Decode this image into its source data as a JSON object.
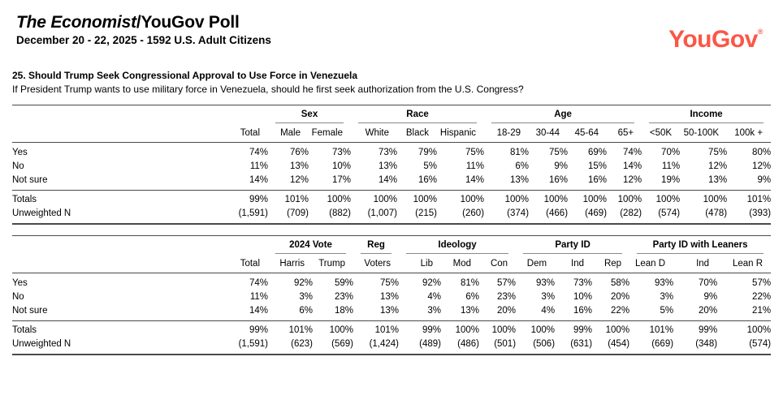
{
  "header": {
    "title_italic": "The Economist",
    "title_rest": "/YouGov Poll",
    "subtitle": "December 20 - 22, 2025 - 1592 U.S. Adult Citizens",
    "logo_text": "YouGov",
    "logo_reg": "®",
    "logo_color": "#fa5747"
  },
  "question": {
    "title": "25. Should Trump Seek Congressional Approval to Use Force in Venezuela",
    "text": "If President Trump wants to use military force in Venezuela, should he first seek authorization from the U.S. Congress?"
  },
  "tables": [
    {
      "groups": [
        {
          "label": "",
          "span": 1
        },
        {
          "label": "Sex",
          "span": 2
        },
        {
          "label": "Race",
          "span": 3
        },
        {
          "label": "Age",
          "span": 4
        },
        {
          "label": "Income",
          "span": 3
        }
      ],
      "columns": [
        "Total",
        "Male",
        "Female",
        "White",
        "Black",
        "Hispanic",
        "18-29",
        "30-44",
        "45-64",
        "65+",
        "<50K",
        "50-100K",
        "100k +"
      ],
      "rows": [
        {
          "label": "Yes",
          "values": [
            "74%",
            "76%",
            "73%",
            "73%",
            "79%",
            "75%",
            "81%",
            "75%",
            "69%",
            "74%",
            "70%",
            "75%",
            "80%"
          ]
        },
        {
          "label": "No",
          "values": [
            "11%",
            "13%",
            "10%",
            "13%",
            "5%",
            "11%",
            "6%",
            "9%",
            "15%",
            "14%",
            "11%",
            "12%",
            "12%"
          ]
        },
        {
          "label": "Not sure",
          "values": [
            "14%",
            "12%",
            "17%",
            "14%",
            "16%",
            "14%",
            "13%",
            "16%",
            "16%",
            "12%",
            "19%",
            "13%",
            "9%"
          ]
        }
      ],
      "footer_rows": [
        {
          "label": "Totals",
          "values": [
            "99%",
            "101%",
            "100%",
            "100%",
            "100%",
            "100%",
            "100%",
            "100%",
            "100%",
            "100%",
            "100%",
            "100%",
            "101%"
          ]
        },
        {
          "label": "Unweighted N",
          "values": [
            "(1,591)",
            "(709)",
            "(882)",
            "(1,007)",
            "(215)",
            "(260)",
            "(374)",
            "(466)",
            "(469)",
            "(282)",
            "(574)",
            "(478)",
            "(393)"
          ]
        }
      ]
    },
    {
      "groups": [
        {
          "label": "",
          "span": 1
        },
        {
          "label": "2024 Vote",
          "span": 2
        },
        {
          "label": "Reg",
          "span": 1
        },
        {
          "label": "Ideology",
          "span": 3
        },
        {
          "label": "Party ID",
          "span": 3
        },
        {
          "label": "Party ID with Leaners",
          "span": 3
        }
      ],
      "columns": [
        "Total",
        "Harris",
        "Trump",
        "Voters",
        "Lib",
        "Mod",
        "Con",
        "Dem",
        "Ind",
        "Rep",
        "Lean D",
        "Ind",
        "Lean R"
      ],
      "rows": [
        {
          "label": "Yes",
          "values": [
            "74%",
            "92%",
            "59%",
            "75%",
            "92%",
            "81%",
            "57%",
            "93%",
            "73%",
            "58%",
            "93%",
            "70%",
            "57%"
          ]
        },
        {
          "label": "No",
          "values": [
            "11%",
            "3%",
            "23%",
            "13%",
            "4%",
            "6%",
            "23%",
            "3%",
            "10%",
            "20%",
            "3%",
            "9%",
            "22%"
          ]
        },
        {
          "label": "Not sure",
          "values": [
            "14%",
            "6%",
            "18%",
            "13%",
            "3%",
            "13%",
            "20%",
            "4%",
            "16%",
            "22%",
            "5%",
            "20%",
            "21%"
          ]
        }
      ],
      "footer_rows": [
        {
          "label": "Totals",
          "values": [
            "99%",
            "101%",
            "100%",
            "101%",
            "99%",
            "100%",
            "100%",
            "100%",
            "99%",
            "100%",
            "101%",
            "99%",
            "100%"
          ]
        },
        {
          "label": "Unweighted N",
          "values": [
            "(1,591)",
            "(623)",
            "(569)",
            "(1,424)",
            "(489)",
            "(486)",
            "(501)",
            "(506)",
            "(631)",
            "(454)",
            "(669)",
            "(348)",
            "(574)"
          ]
        }
      ]
    }
  ]
}
